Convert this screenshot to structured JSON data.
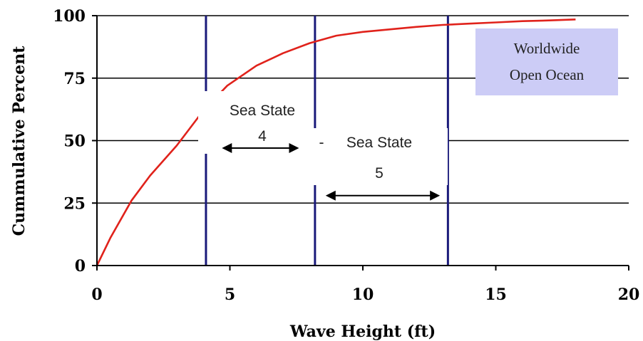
{
  "chart_data": {
    "type": "line",
    "xlabel": "Wave Height (ft)",
    "ylabel": "Cummulative Percent",
    "xlim": [
      0,
      20
    ],
    "ylim": [
      0,
      100
    ],
    "x_ticks": [
      "0",
      "5",
      "10",
      "15",
      "20"
    ],
    "y_ticks": [
      "0",
      "25",
      "50",
      "75",
      "100"
    ],
    "grid": "horizontal",
    "series": [
      {
        "color": "#e0221b",
        "x": [
          0,
          0.5,
          1.3,
          2,
          3,
          4,
          4.9,
          6,
          7,
          8,
          9,
          10,
          11,
          12,
          13,
          14,
          15,
          16,
          17,
          18
        ],
        "y": [
          0,
          11,
          26,
          36,
          48,
          62,
          72,
          80,
          85,
          89,
          92,
          93.5,
          94.5,
          95.5,
          96.3,
          96.8,
          97.3,
          97.8,
          98.1,
          98.5
        ]
      }
    ],
    "vertical_lines": {
      "color": "#1a1a7a",
      "x": [
        4.1,
        8.2,
        13.2
      ]
    },
    "annotations": {
      "sea_state_4": {
        "line1": "Sea State",
        "line2": "4",
        "arrow_from": 4.7,
        "arrow_to": 7.6,
        "arrow_y": 47
      },
      "sea_state_5": {
        "line1": "Sea State",
        "line2": "5",
        "arrow_from": 8.6,
        "arrow_to": 12.9,
        "arrow_y": 28
      },
      "region_box": {
        "line1": "Worldwide",
        "line2": "Open Ocean",
        "color": "#ccccf6"
      }
    }
  }
}
